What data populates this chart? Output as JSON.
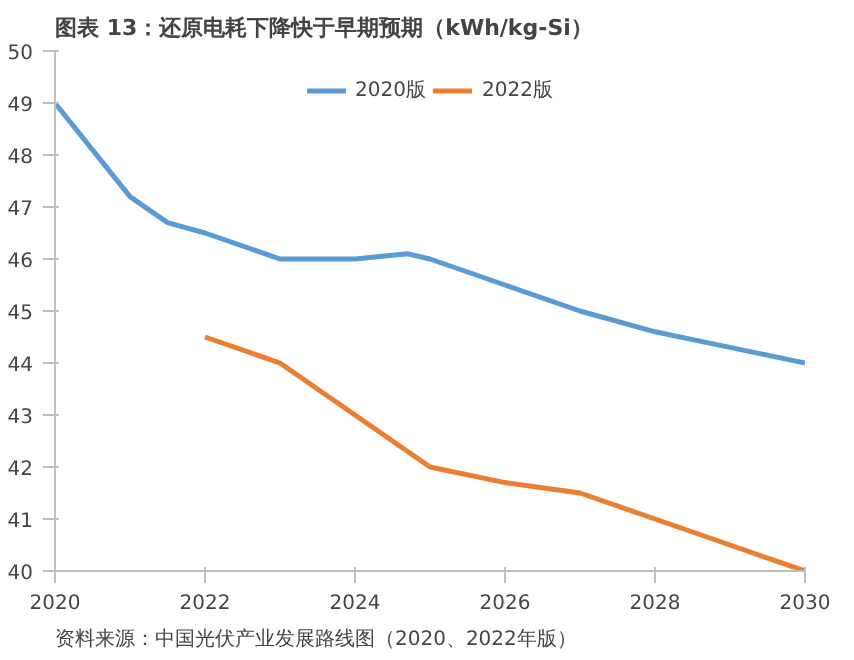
{
  "chart_data": {
    "type": "line",
    "title": "图表 13：还原电耗下降快于早期预期（kWh/kg-Si）",
    "annotations": [
      "资料来源：中国光伏产业发展路线图（2020、2022年版）"
    ],
    "series": [
      {
        "name": "2020版",
        "color": "#5b9bd5",
        "x": [
          2020,
          2021,
          2021.5,
          2022,
          2023,
          2024,
          2024.7,
          2025,
          2026,
          2027,
          2028,
          2029,
          2030
        ],
        "values": [
          49.0,
          47.2,
          46.7,
          46.5,
          46.0,
          46.0,
          46.1,
          46.0,
          45.5,
          45.0,
          44.6,
          44.3,
          44.0
        ]
      },
      {
        "name": "2022版",
        "color": "#ed7d31",
        "x": [
          2022,
          2023,
          2024,
          2025,
          2026,
          2027,
          2028,
          2029,
          2030
        ],
        "values": [
          44.5,
          44.0,
          43.0,
          42.0,
          41.7,
          41.5,
          41.0,
          40.5,
          40.0
        ]
      }
    ],
    "xlim": [
      2020,
      2030
    ],
    "xticks": [
      2020,
      2022,
      2024,
      2026,
      2028,
      2030
    ],
    "ylim": [
      40,
      50
    ],
    "yticks": [
      40,
      41,
      42,
      43,
      44,
      45,
      46,
      47,
      48,
      49,
      50
    ],
    "grid": false,
    "legend": "top",
    "marker": "none",
    "line_style": "solid"
  }
}
